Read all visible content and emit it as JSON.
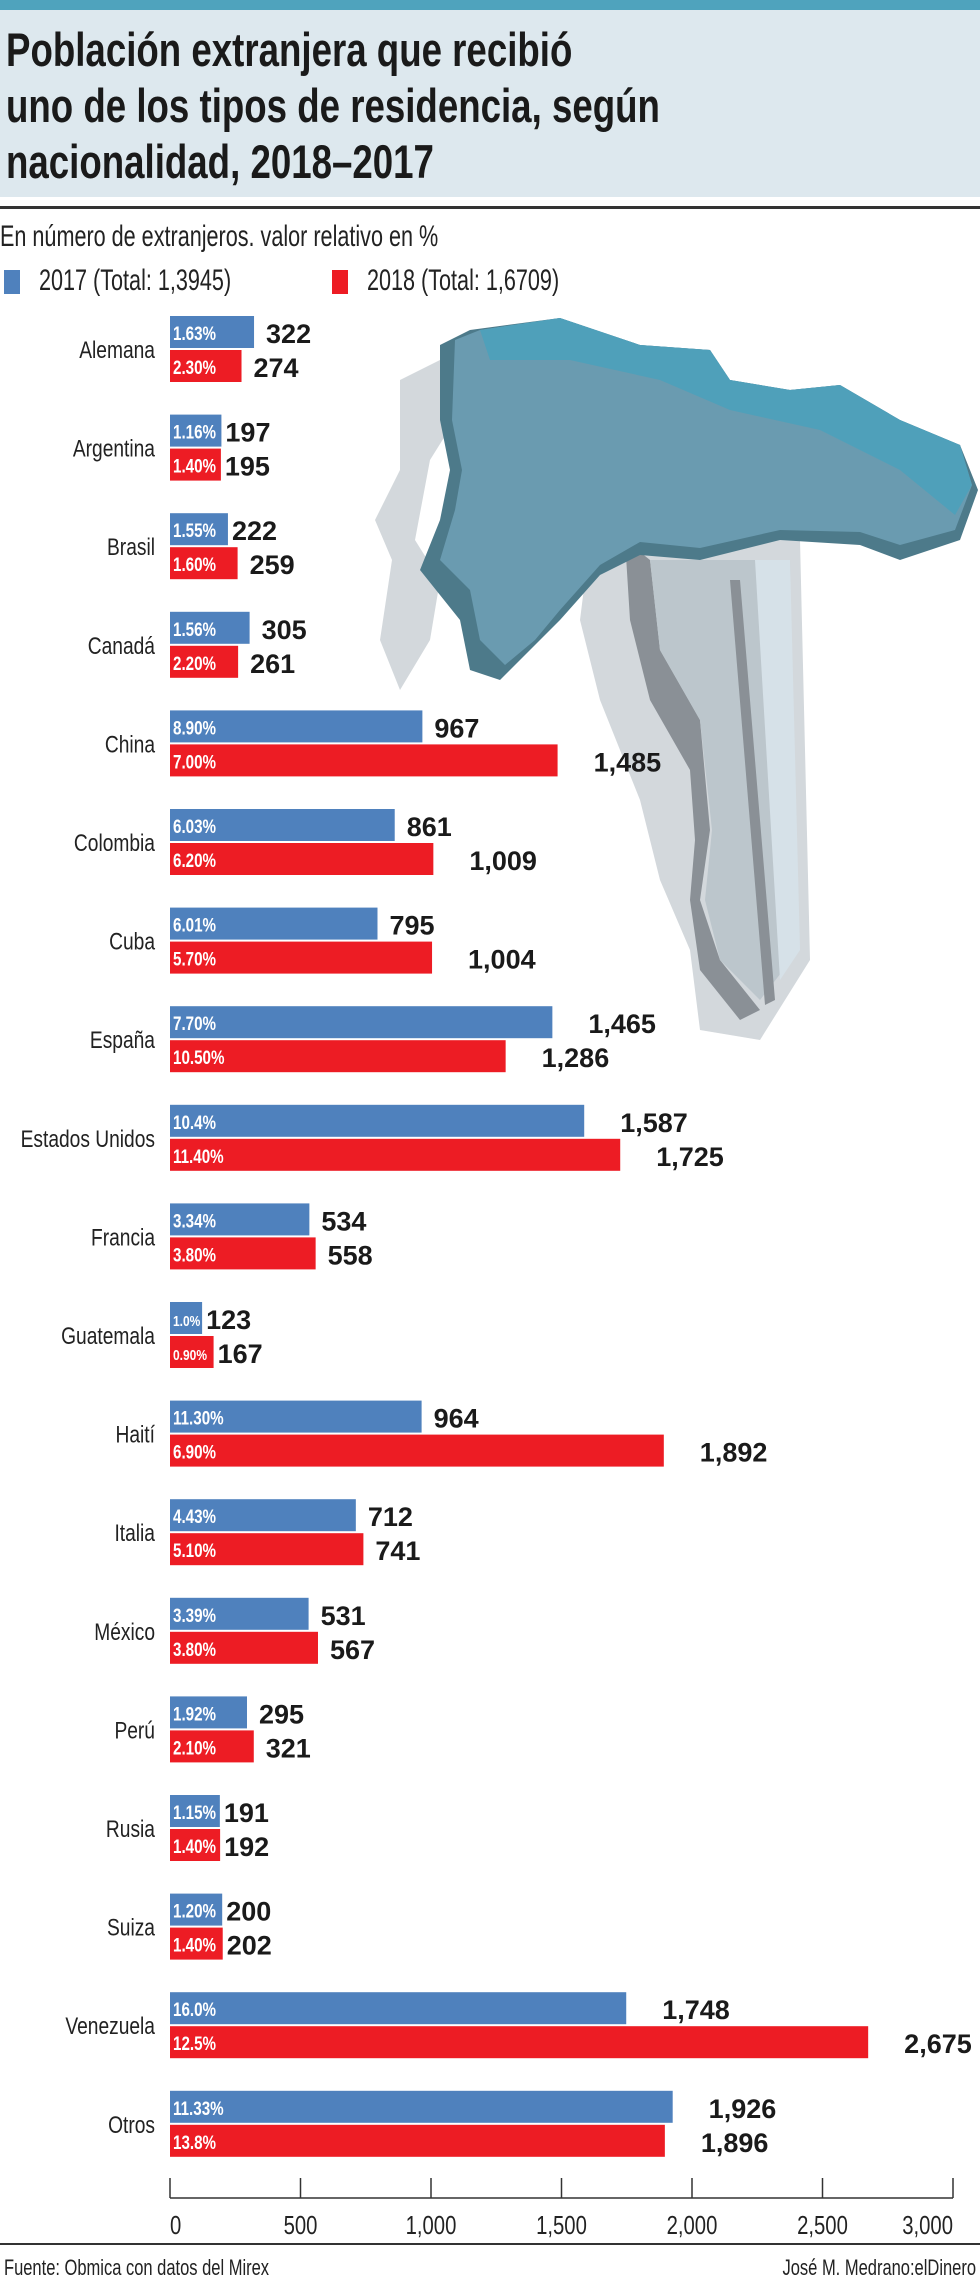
{
  "title": "Población extranjera que recibió\nuno de los tipos de residencia, según\nnacionalidad, 2018–2017",
  "subtitle": "En número de extranjeros. valor relativo en %",
  "source": "Fuente: Obmica con datos del Mirex",
  "credit": "José M. Medrano:elDinero",
  "colors": {
    "2017": "#4f81bd",
    "2018": "#ed1c24",
    "title_band": "#dde8ee",
    "top_bar": "#4fa3bd"
  },
  "chart_data": {
    "type": "bar",
    "orientation": "horizontal",
    "categories": [
      "Alemana",
      "Argentina",
      "Brasil",
      "Canadá",
      "China",
      "Colombia",
      "Cuba",
      "España",
      "Estados Unidos",
      "Francia",
      "Guatemala",
      "Haití",
      "Italia",
      "México",
      "Perú",
      "Rusia",
      "Suiza",
      "Venezuela",
      "Otros"
    ],
    "series": [
      {
        "name": "2017 (Total: 1,3945)",
        "values": [
          322,
          197,
          222,
          305,
          967,
          861,
          795,
          1465,
          1587,
          534,
          123,
          964,
          712,
          531,
          295,
          191,
          200,
          1748,
          1926
        ],
        "value_labels": [
          "322",
          "197",
          "222",
          "305",
          "967",
          "861",
          "795",
          "1,465",
          "1,587",
          "534",
          "123",
          "964",
          "712",
          "531",
          "295",
          "191",
          "200",
          "1,748",
          "1,926"
        ],
        "percent_labels": [
          "1.63%",
          "1.16%",
          "1.55%",
          "1.56%",
          "8.90%",
          "6.03%",
          "6.01%",
          "7.70%",
          "10.4%",
          "3.34%",
          "1.0%",
          "11.30%",
          "4.43%",
          "3.39%",
          "1.92%",
          "1.15%",
          "1.20%",
          "16.0%",
          "11.33%"
        ]
      },
      {
        "name": "2018 (Total: 1,6709)",
        "values": [
          274,
          195,
          259,
          261,
          1485,
          1009,
          1004,
          1286,
          1725,
          558,
          167,
          1892,
          741,
          567,
          321,
          192,
          202,
          2675,
          1896
        ],
        "value_labels": [
          "274",
          "195",
          "259",
          "261",
          "1,485",
          "1,009",
          "1,004",
          "1,286",
          "1,725",
          "558",
          "167",
          "1,892",
          "741",
          "567",
          "321",
          "192",
          "202",
          "2,675",
          "1,896"
        ],
        "percent_labels": [
          "2.30%",
          "1.40%",
          "1.60%",
          "2.20%",
          "7.00%",
          "6.20%",
          "5.70%",
          "10.50%",
          "11.40%",
          "3.80%",
          "0.90%",
          "6.90%",
          "5.10%",
          "3.80%",
          "2.10%",
          "1.40%",
          "1.40%",
          "12.5%",
          "13.8%"
        ]
      }
    ],
    "xlim": [
      0,
      3000
    ],
    "xticks": [
      "0",
      "500",
      "1,000",
      "1,500",
      "2,000",
      "2,500",
      "3,000"
    ],
    "grid": false,
    "legend_position": "top-left"
  }
}
